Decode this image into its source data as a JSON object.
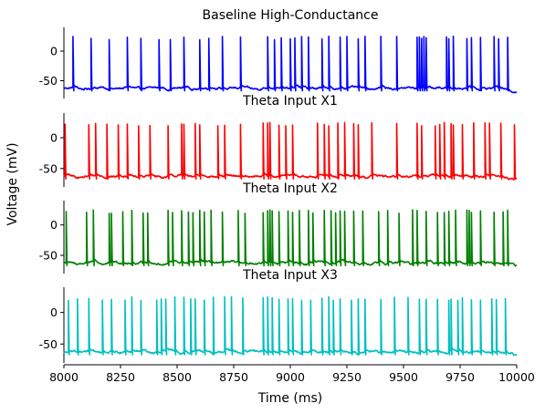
{
  "chart_data": {
    "type": "line",
    "ylabel": "Voltage (mV)",
    "xlabel": "Time (ms)",
    "xlim": [
      8000,
      10000
    ],
    "ylim": [
      -80,
      40
    ],
    "x_ticks": [
      8000,
      8250,
      8500,
      8750,
      9000,
      9250,
      9500,
      9750,
      10000
    ],
    "y_ticks": [
      0,
      -50
    ],
    "grid": false,
    "legend": "none",
    "resting_mv": -63,
    "spike_peak_mv": 25,
    "panels": [
      {
        "title": "Baseline High-Conductance",
        "color": "#0000ff",
        "spike_times_ms": [
          8040,
          8120,
          8200,
          8280,
          8340,
          8420,
          8470,
          8530,
          8600,
          8640,
          8700,
          8780,
          8900,
          8930,
          8960,
          9000,
          9020,
          9050,
          9080,
          9140,
          9170,
          9220,
          9250,
          9300,
          9330,
          9400,
          9470,
          9560,
          9570,
          9580,
          9590,
          9600,
          9690,
          9700,
          9720,
          9780,
          9800,
          9840,
          9900,
          9920,
          9960
        ]
      },
      {
        "title": "Theta Input X1",
        "color": "#ff0000",
        "spike_times_ms": [
          8005,
          8110,
          8140,
          8190,
          8240,
          8280,
          8330,
          8380,
          8460,
          8520,
          8530,
          8580,
          8600,
          8680,
          8710,
          8780,
          8880,
          8900,
          8910,
          8950,
          8980,
          9010,
          9120,
          9150,
          9170,
          9210,
          9240,
          9280,
          9300,
          9360,
          9470,
          9560,
          9580,
          9640,
          9660,
          9680,
          9710,
          9720,
          9760,
          9810,
          9860,
          9880,
          9930,
          9990
        ]
      },
      {
        "title": "Theta Input X2",
        "color": "#008000",
        "spike_times_ms": [
          8010,
          8100,
          8130,
          8200,
          8210,
          8260,
          8300,
          8350,
          8370,
          8460,
          8480,
          8520,
          8550,
          8570,
          8600,
          8620,
          8650,
          8700,
          8770,
          8800,
          8880,
          8900,
          8910,
          8920,
          8950,
          8990,
          9010,
          9040,
          9080,
          9100,
          9150,
          9180,
          9200,
          9220,
          9240,
          9280,
          9320,
          9390,
          9430,
          9480,
          9540,
          9560,
          9600,
          9650,
          9680,
          9700,
          9730,
          9780,
          9790,
          9800,
          9840,
          9900,
          9940,
          9960
        ]
      },
      {
        "title": "Theta Input X3",
        "color": "#00bfbf",
        "spike_times_ms": [
          8020,
          8060,
          8110,
          8170,
          8210,
          8270,
          8300,
          8340,
          8410,
          8430,
          8450,
          8490,
          8530,
          8560,
          8580,
          8620,
          8660,
          8710,
          8740,
          8790,
          8880,
          8900,
          8920,
          8950,
          8990,
          9010,
          9050,
          9090,
          9140,
          9170,
          9190,
          9220,
          9270,
          9300,
          9330,
          9400,
          9460,
          9520,
          9570,
          9600,
          9650,
          9700,
          9710,
          9740,
          9760,
          9800,
          9840,
          9890,
          9910,
          9950
        ]
      }
    ]
  }
}
